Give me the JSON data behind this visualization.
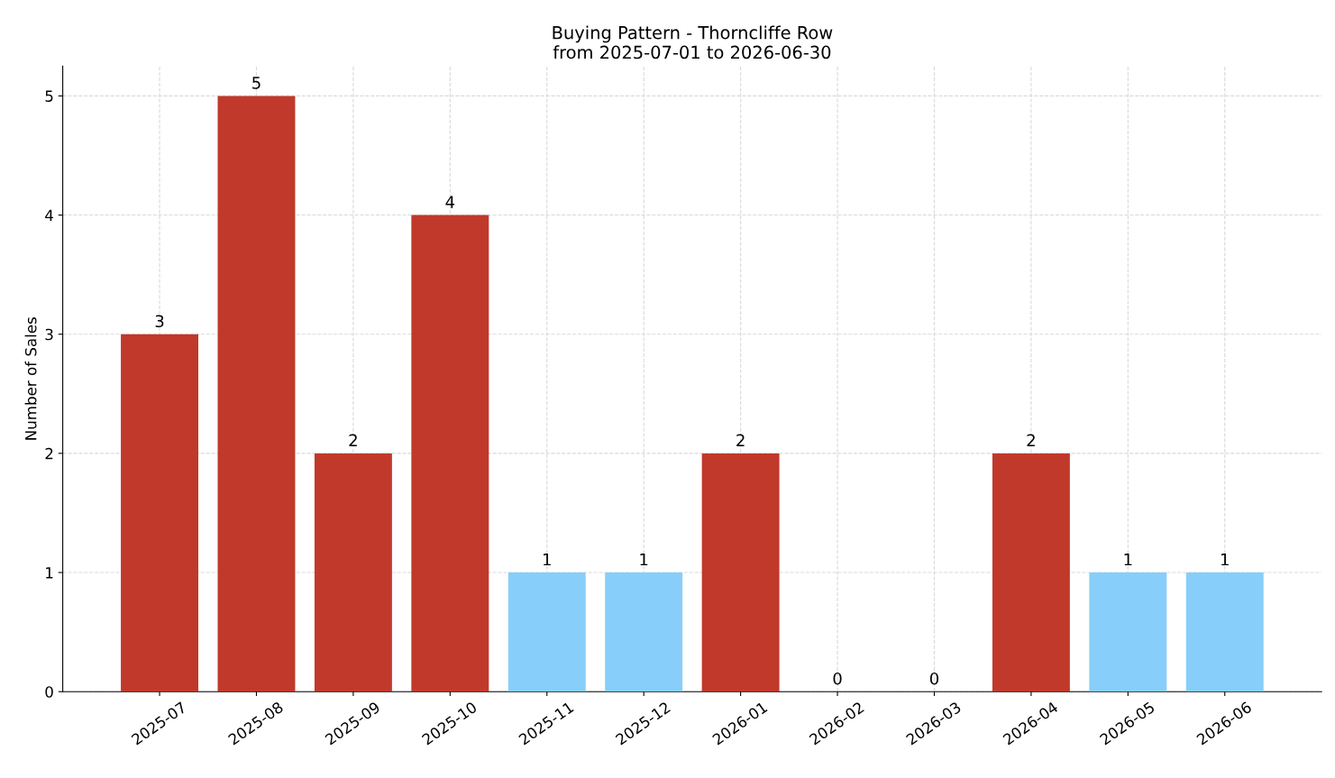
{
  "chart_data": {
    "type": "bar",
    "title": "Buying Pattern - Thorncliffe Row",
    "subtitle": "from 2025-07-01 to 2026-06-30",
    "ylabel": "Number of Sales",
    "categories": [
      "2025-07",
      "2025-08",
      "2025-09",
      "2025-10",
      "2025-11",
      "2025-12",
      "2026-01",
      "2026-02",
      "2026-03",
      "2026-04",
      "2026-05",
      "2026-06"
    ],
    "values": [
      3,
      5,
      2,
      4,
      1,
      1,
      2,
      0,
      0,
      2,
      1,
      1
    ],
    "colors": [
      "#c0392b",
      "#c0392b",
      "#c0392b",
      "#c0392b",
      "#87cefa",
      "#87cefa",
      "#c0392b",
      "#87cefa",
      "#87cefa",
      "#c0392b",
      "#87cefa",
      "#87cefa"
    ],
    "ylim": [
      0,
      5.25
    ],
    "yticks": [
      0,
      1,
      2,
      3,
      4,
      5
    ],
    "grid": true,
    "data_labels": true
  }
}
